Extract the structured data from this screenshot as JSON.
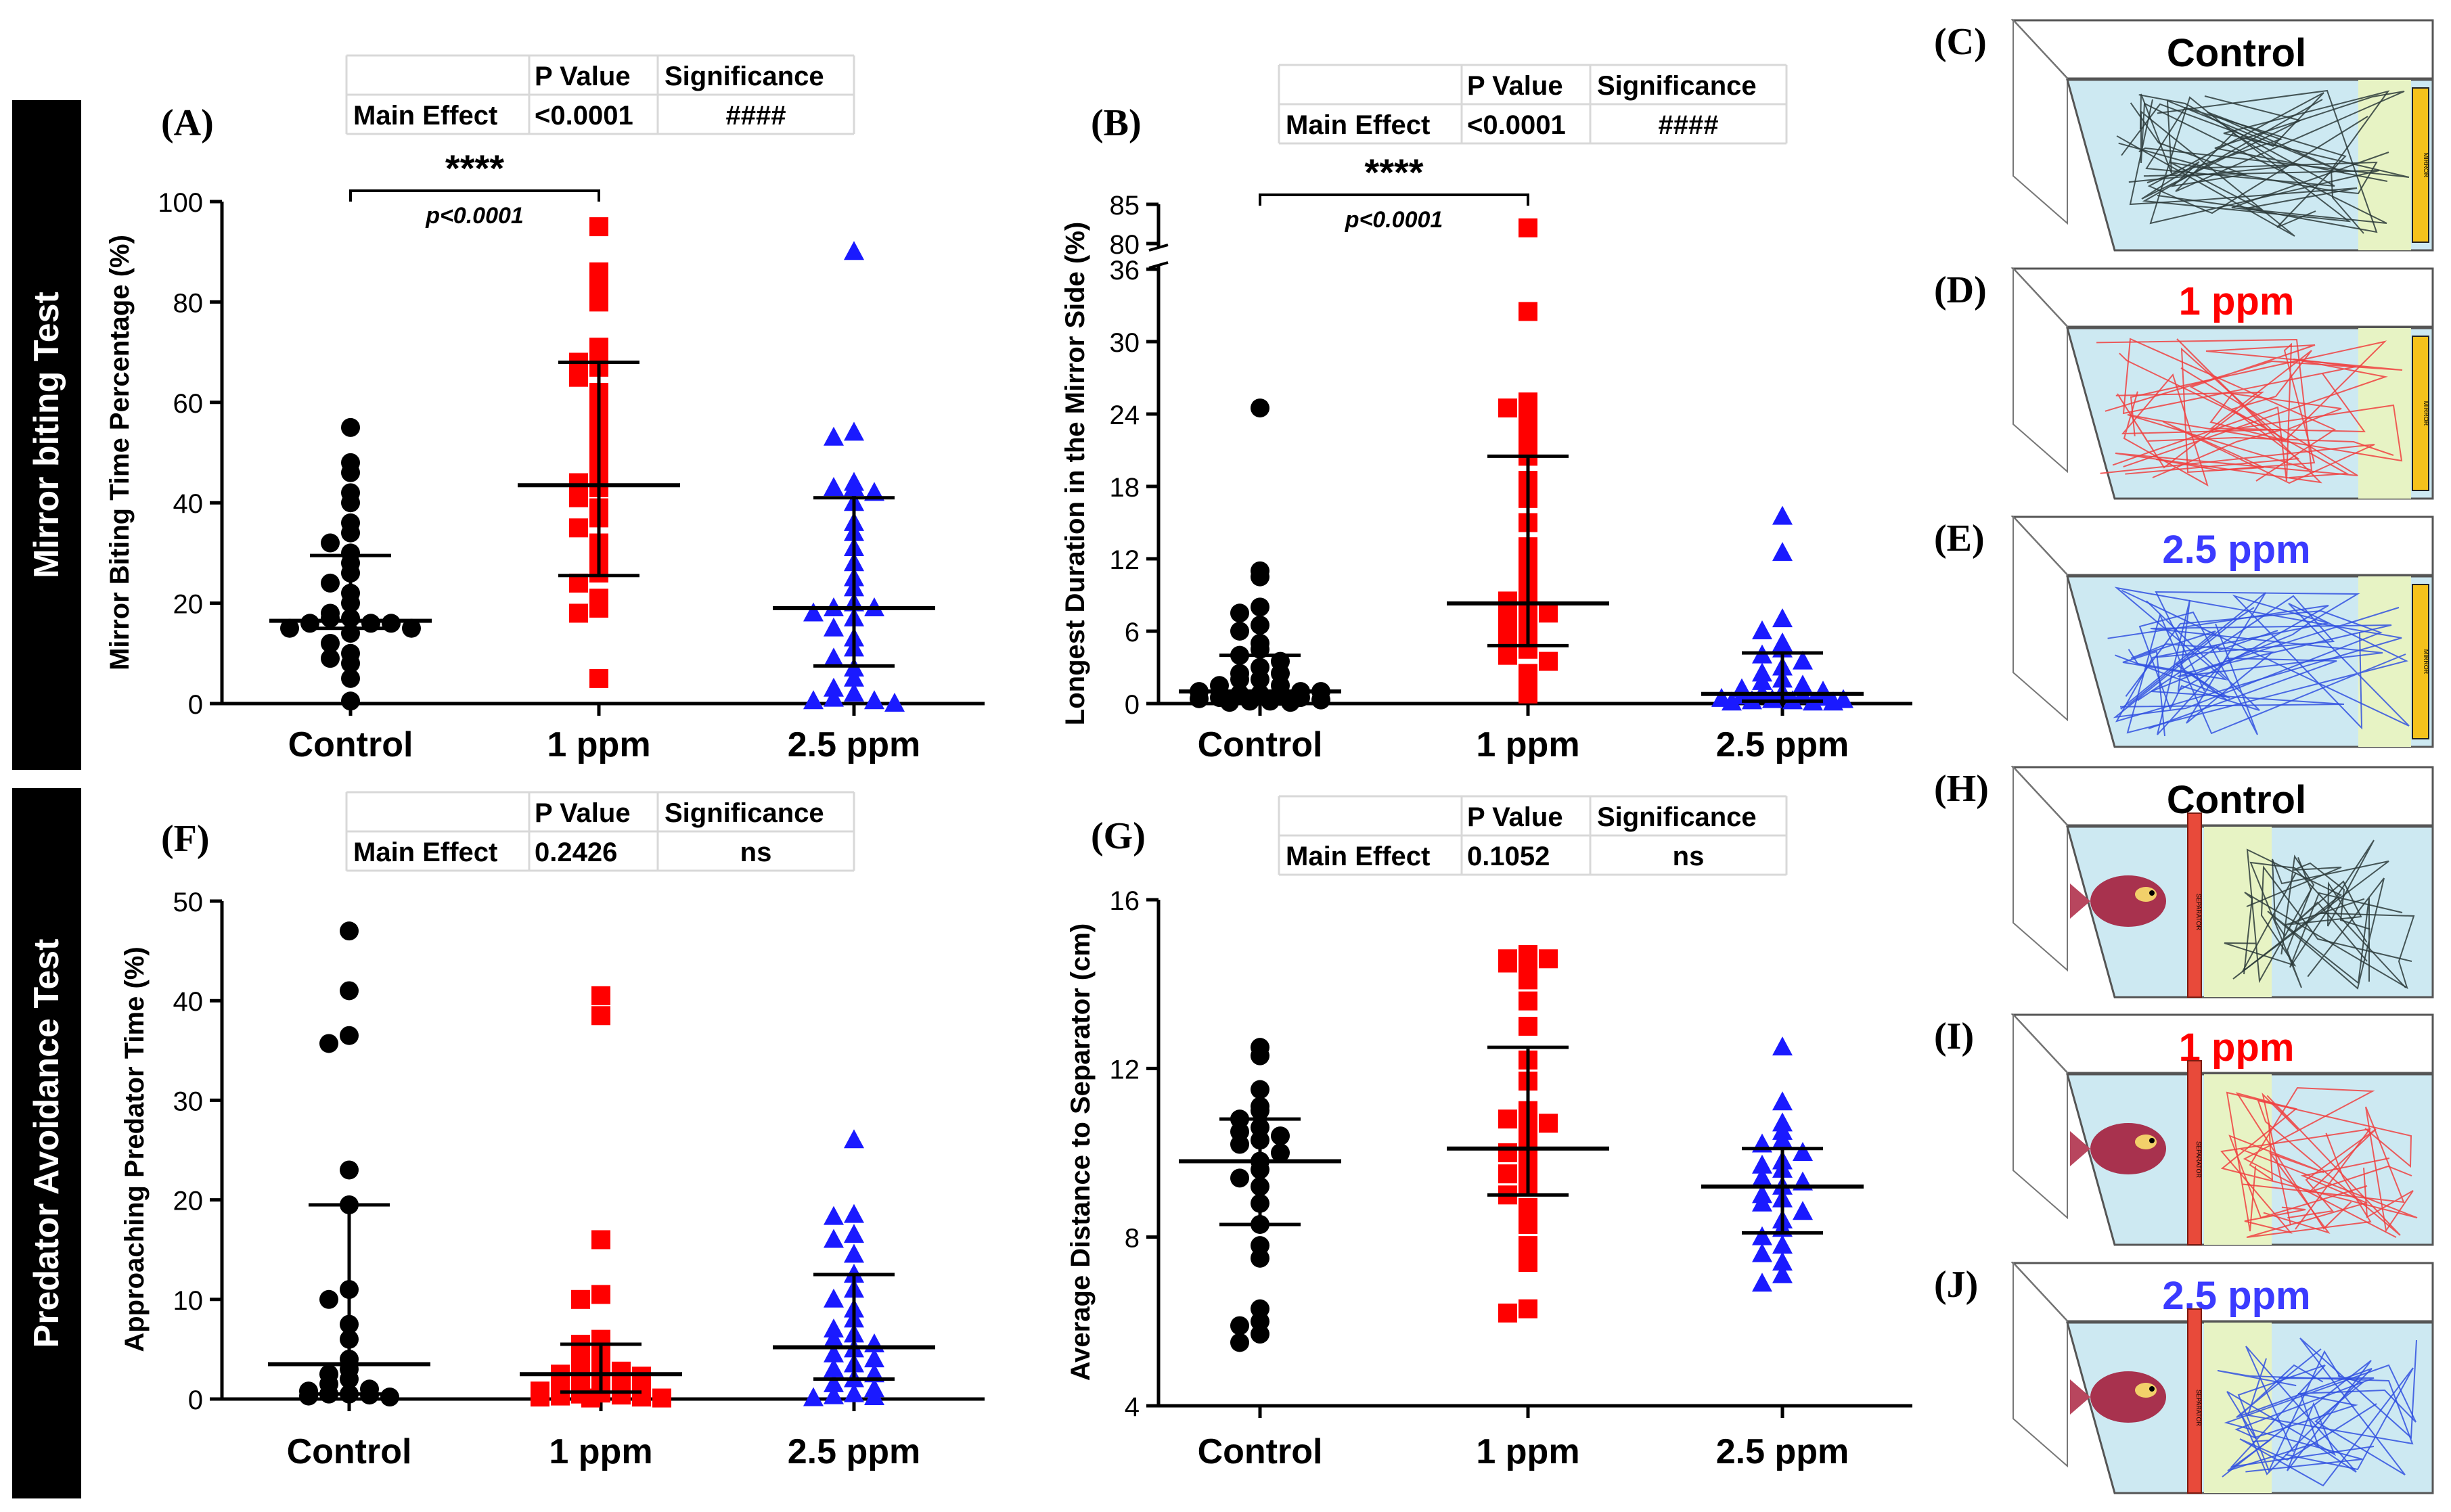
{
  "row_labels": {
    "top": "Mirror biting Test",
    "bottom": "Predator Avoidance Test"
  },
  "groups": [
    "Control",
    "1 ppm",
    "2.5 ppm"
  ],
  "colors": {
    "Control": "#000000",
    "1 ppm": "#ff0000",
    "2.5 ppm": "#1a1aff",
    "row_label_bg": "#000000"
  },
  "tables": {
    "header": [
      "P Value",
      "Significance"
    ],
    "row_label": "Main Effect",
    "A": {
      "p_value": "<0.0001",
      "significance": "####"
    },
    "B": {
      "p_value": "<0.0001",
      "significance": "####"
    },
    "F": {
      "p_value": "0.2426",
      "significance": "ns"
    },
    "G": {
      "p_value": "0.1052",
      "significance": "ns"
    }
  },
  "chart_data": [
    {
      "id": "A",
      "panel_label": "(A)",
      "type": "scatter",
      "ylabel": "Mirror Biting Time Percentage (%)",
      "ylim": [
        0,
        100
      ],
      "yticks": [
        0,
        20,
        40,
        60,
        80,
        100
      ],
      "zero_line": true,
      "categories": [
        "Control",
        "1 ppm",
        "2.5 ppm"
      ],
      "series": [
        {
          "name": "Control",
          "marker": "circle",
          "median": 16.5,
          "iqr": [
            15,
            29.5
          ],
          "values": [
            55,
            48,
            46,
            42,
            40,
            36,
            34,
            32,
            30,
            28,
            26,
            24,
            22,
            20,
            18,
            17,
            17,
            16,
            16,
            16,
            15,
            15,
            14,
            12,
            10,
            9,
            8,
            5,
            0.5
          ]
        },
        {
          "name": "1 ppm",
          "marker": "square",
          "median": 43.5,
          "iqr": [
            25.5,
            68
          ],
          "values": [
            95,
            86,
            83,
            80,
            71,
            69,
            68,
            67,
            65,
            62,
            59,
            57,
            54,
            51,
            48,
            46,
            44,
            43,
            41,
            39,
            37,
            35,
            32,
            30,
            28,
            26,
            24,
            21,
            19,
            18,
            5
          ]
        },
        {
          "name": "2.5 ppm",
          "marker": "triangle",
          "median": 19,
          "iqr": [
            7.5,
            41
          ],
          "values": [
            90,
            54,
            53,
            44,
            43,
            43,
            42,
            40,
            36,
            34,
            31,
            28,
            25,
            23,
            20,
            19,
            19,
            18,
            17,
            15,
            13,
            11,
            9,
            7,
            5,
            3,
            2,
            1,
            0.5,
            0.5,
            0
          ]
        }
      ],
      "comparison": {
        "from": "Control",
        "to": "1 ppm",
        "stars": "****",
        "p_text": "p<0.0001"
      }
    },
    {
      "id": "B",
      "panel_label": "(B)",
      "type": "scatter",
      "ylabel": "Longest  Duration in the Mirror  Side (%)",
      "ylim": [
        0,
        85
      ],
      "axis_break": [
        36,
        80
      ],
      "yticks_lower": [
        0,
        6,
        12,
        18,
        24,
        30,
        36
      ],
      "yticks_upper": [
        80,
        85
      ],
      "zero_line": true,
      "categories": [
        "Control",
        "1 ppm",
        "2.5 ppm"
      ],
      "series": [
        {
          "name": "Control",
          "marker": "circle",
          "median": 1,
          "iqr": [
            0.5,
            4
          ],
          "values": [
            24.5,
            11,
            10.5,
            8,
            7.5,
            6.5,
            6,
            5,
            4.5,
            4,
            3.5,
            3,
            2.5,
            2.5,
            2,
            2,
            1.5,
            1.5,
            1,
            1,
            1,
            0.8,
            0.8,
            0.6,
            0.5,
            0.5,
            0.4,
            0.3,
            0.2,
            0.2,
            0.1,
            0.1
          ]
        },
        {
          "name": "1 ppm",
          "marker": "square",
          "median": 8.3,
          "iqr": [
            4.8,
            20.5
          ],
          "values": [
            82,
            32.5,
            25,
            24.5,
            23.5,
            22,
            21,
            20.5,
            18.5,
            17,
            15,
            13,
            11.5,
            10,
            9,
            8.5,
            8.3,
            8,
            7.5,
            7,
            6.5,
            5.5,
            5,
            4.5,
            4,
            3.5,
            2.5,
            1.5,
            0.8
          ]
        },
        {
          "name": "2.5 ppm",
          "marker": "triangle",
          "median": 0.8,
          "iqr": [
            0.2,
            4.2
          ],
          "values": [
            15.5,
            12.5,
            7,
            6,
            5,
            4.5,
            4,
            3.5,
            3,
            2.5,
            2,
            1.8,
            1.5,
            1.2,
            1,
            0.9,
            0.8,
            0.7,
            0.6,
            0.5,
            0.4,
            0.3,
            0.3,
            0.2,
            0.2,
            0.1,
            0.1,
            0.1
          ]
        }
      ],
      "comparison": {
        "from": "Control",
        "to": "1 ppm",
        "stars": "****",
        "p_text": "p<0.0001"
      }
    },
    {
      "id": "F",
      "panel_label": "(F)",
      "type": "scatter",
      "ylabel": "Approaching Predator Time (%)",
      "ylim": [
        0,
        50
      ],
      "yticks": [
        0,
        10,
        20,
        30,
        40,
        50
      ],
      "zero_line": true,
      "categories": [
        "Control",
        "1 ppm",
        "2.5 ppm"
      ],
      "series": [
        {
          "name": "Control",
          "marker": "circle",
          "median": 3.5,
          "iqr": [
            0.5,
            19.5
          ],
          "values": [
            47,
            41,
            36.5,
            35.7,
            23,
            19.5,
            11,
            10,
            7.5,
            6,
            4,
            3,
            2.5,
            2,
            1.5,
            1,
            0.8,
            0.5,
            0.5,
            0.4,
            0.3,
            0.2
          ]
        },
        {
          "name": "1 ppm",
          "marker": "square",
          "median": 2.5,
          "iqr": [
            0.7,
            5.5
          ],
          "values": [
            40.5,
            38.5,
            16,
            10.5,
            10,
            6,
            5.5,
            4.5,
            4,
            3.5,
            3,
            2.8,
            2.5,
            2.3,
            2,
            1.8,
            1.5,
            1.3,
            1,
            0.8,
            0.6,
            0.5,
            0.4,
            0.3,
            0.2,
            0.2,
            0.1,
            0.1
          ]
        },
        {
          "name": "2.5 ppm",
          "marker": "triangle",
          "median": 5.2,
          "iqr": [
            2,
            12.5
          ],
          "values": [
            26,
            18.5,
            18.3,
            16.5,
            16,
            14.5,
            12.5,
            11,
            10,
            9,
            8,
            7,
            6.5,
            6,
            5.5,
            5,
            4.5,
            4,
            3.5,
            3,
            2.5,
            2,
            1.5,
            1,
            0.5,
            0.3,
            0.2,
            0.1
          ]
        }
      ]
    },
    {
      "id": "G",
      "panel_label": "(G)",
      "type": "scatter",
      "ylabel": "Average Distance to Separator (cm)",
      "ylim": [
        4,
        16
      ],
      "yticks": [
        4,
        8,
        12,
        16
      ],
      "zero_line": false,
      "categories": [
        "Control",
        "1 ppm",
        "2.5 ppm"
      ],
      "series": [
        {
          "name": "Control",
          "marker": "circle",
          "median": 9.8,
          "iqr": [
            8.3,
            10.8
          ],
          "values": [
            12.5,
            12.3,
            11.5,
            11.1,
            11,
            10.8,
            10.6,
            10.5,
            10.4,
            10.3,
            10.2,
            10,
            9.8,
            9.6,
            9.4,
            9.2,
            8.8,
            8.3,
            7.8,
            7.5,
            6.3,
            6,
            5.9,
            5.7,
            5.5
          ]
        },
        {
          "name": "1 ppm",
          "marker": "square",
          "median": 10.1,
          "iqr": [
            9,
            12.5
          ],
          "values": [
            14.7,
            14.6,
            14.6,
            14.5,
            14.5,
            14.1,
            13.6,
            13,
            12.2,
            11.7,
            11,
            10.8,
            10.7,
            10.6,
            10.2,
            10,
            9.8,
            9.6,
            9.5,
            9.2,
            9,
            8.7,
            8.3,
            7.8,
            7.4,
            6.3,
            6.2
          ]
        },
        {
          "name": "2.5 ppm",
          "marker": "triangle",
          "median": 9.2,
          "iqr": [
            8.1,
            10.1
          ],
          "values": [
            12.5,
            11.2,
            10.7,
            10.5,
            10.3,
            10.2,
            10,
            9.8,
            9.7,
            9.6,
            9.4,
            9.3,
            9.2,
            9,
            8.9,
            8.8,
            8.6,
            8.4,
            8.2,
            8,
            7.8,
            7.6,
            7.4,
            7.1,
            6.9
          ]
        }
      ]
    }
  ],
  "track_panels": [
    {
      "id": "C",
      "label": "(C)",
      "title": "Control",
      "title_color": "#000000",
      "test": "mirror",
      "track_color": "#2c3a3a",
      "zone_text": "MIRROR"
    },
    {
      "id": "D",
      "label": "(D)",
      "title": "1 ppm",
      "title_color": "#ff0000",
      "test": "mirror",
      "track_color": "#f04040",
      "zone_text": "MIRROR"
    },
    {
      "id": "E",
      "label": "(E)",
      "title": "2.5 ppm",
      "title_color": "#3b3bff",
      "test": "mirror",
      "track_color": "#3050e0",
      "zone_text": "MIRROR"
    },
    {
      "id": "H",
      "label": "(H)",
      "title": "Control",
      "title_color": "#000000",
      "test": "predator",
      "track_color": "#2c3a3a",
      "zone_text": "SEPARATOR"
    },
    {
      "id": "I",
      "label": "(I)",
      "title": "1 ppm",
      "title_color": "#ff0000",
      "test": "predator",
      "track_color": "#f04040",
      "zone_text": "SEPARATOR"
    },
    {
      "id": "J",
      "label": "(J)",
      "title": "2.5 ppm",
      "title_color": "#3b3bff",
      "test": "predator",
      "track_color": "#3050e0",
      "zone_text": "SEPARATOR"
    }
  ]
}
